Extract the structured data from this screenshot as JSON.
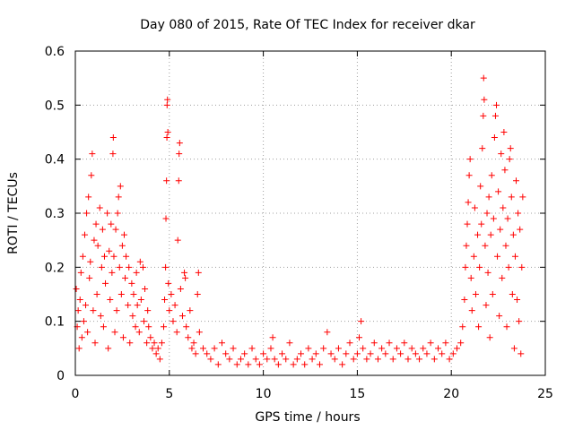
{
  "chart_data": {
    "type": "scatter",
    "title": "Day 080 of 2015, Rate Of TEC Index for receiver dkar",
    "xlabel": "GPS time / hours",
    "ylabel": "ROTI / TECUs",
    "xlim": [
      0,
      25
    ],
    "ylim": [
      0,
      0.6
    ],
    "x_ticks": [
      0,
      5,
      10,
      15,
      20,
      25
    ],
    "y_ticks": [
      0,
      0.1,
      0.2,
      0.3,
      0.4,
      0.5,
      0.6
    ],
    "x_tick_labels": [
      "0",
      "5",
      "10",
      "15",
      "20",
      "25"
    ],
    "y_tick_labels": [
      "0",
      "0.1",
      "0.2",
      "0.3",
      "0.4",
      "0.5",
      "0.6"
    ],
    "grid": true,
    "marker": "+",
    "series": [
      {
        "name": "ROTI",
        "color": "#ff0000",
        "points": [
          [
            0.05,
            0.16
          ],
          [
            0.1,
            0.09
          ],
          [
            0.15,
            0.12
          ],
          [
            0.2,
            0.05
          ],
          [
            0.25,
            0.14
          ],
          [
            0.3,
            0.19
          ],
          [
            0.35,
            0.07
          ],
          [
            0.4,
            0.22
          ],
          [
            0.45,
            0.1
          ],
          [
            0.5,
            0.26
          ],
          [
            0.55,
            0.13
          ],
          [
            0.6,
            0.3
          ],
          [
            0.65,
            0.08
          ],
          [
            0.7,
            0.33
          ],
          [
            0.75,
            0.18
          ],
          [
            0.8,
            0.21
          ],
          [
            0.85,
            0.37
          ],
          [
            0.9,
            0.41
          ],
          [
            0.95,
            0.12
          ],
          [
            1.0,
            0.25
          ],
          [
            1.05,
            0.06
          ],
          [
            1.1,
            0.28
          ],
          [
            1.15,
            0.15
          ],
          [
            1.2,
            0.24
          ],
          [
            1.3,
            0.31
          ],
          [
            1.35,
            0.11
          ],
          [
            1.4,
            0.2
          ],
          [
            1.45,
            0.27
          ],
          [
            1.5,
            0.09
          ],
          [
            1.55,
            0.22
          ],
          [
            1.6,
            0.17
          ],
          [
            1.7,
            0.3
          ],
          [
            1.75,
            0.05
          ],
          [
            1.8,
            0.23
          ],
          [
            1.85,
            0.14
          ],
          [
            1.9,
            0.28
          ],
          [
            1.95,
            0.19
          ],
          [
            2.0,
            0.41
          ],
          [
            2.02,
            0.44
          ],
          [
            2.05,
            0.22
          ],
          [
            2.1,
            0.08
          ],
          [
            2.15,
            0.27
          ],
          [
            2.2,
            0.12
          ],
          [
            2.25,
            0.3
          ],
          [
            2.3,
            0.33
          ],
          [
            2.35,
            0.2
          ],
          [
            2.4,
            0.35
          ],
          [
            2.45,
            0.15
          ],
          [
            2.5,
            0.24
          ],
          [
            2.55,
            0.07
          ],
          [
            2.6,
            0.26
          ],
          [
            2.65,
            0.18
          ],
          [
            2.7,
            0.22
          ],
          [
            2.8,
            0.13
          ],
          [
            2.85,
            0.2
          ],
          [
            2.9,
            0.06
          ],
          [
            3.0,
            0.17
          ],
          [
            3.05,
            0.11
          ],
          [
            3.1,
            0.15
          ],
          [
            3.2,
            0.09
          ],
          [
            3.25,
            0.19
          ],
          [
            3.3,
            0.13
          ],
          [
            3.4,
            0.08
          ],
          [
            3.45,
            0.21
          ],
          [
            3.5,
            0.14
          ],
          [
            3.6,
            0.2
          ],
          [
            3.65,
            0.1
          ],
          [
            3.7,
            0.16
          ],
          [
            3.8,
            0.06
          ],
          [
            3.85,
            0.12
          ],
          [
            3.9,
            0.09
          ],
          [
            4.0,
            0.07
          ],
          [
            4.1,
            0.05
          ],
          [
            4.2,
            0.06
          ],
          [
            4.3,
            0.04
          ],
          [
            4.4,
            0.05
          ],
          [
            4.5,
            0.03
          ],
          [
            4.6,
            0.06
          ],
          [
            4.7,
            0.09
          ],
          [
            4.75,
            0.14
          ],
          [
            4.8,
            0.2
          ],
          [
            4.82,
            0.29
          ],
          [
            4.85,
            0.36
          ],
          [
            4.87,
            0.44
          ],
          [
            4.88,
            0.5
          ],
          [
            4.9,
            0.51
          ],
          [
            4.92,
            0.45
          ],
          [
            4.95,
            0.17
          ],
          [
            5.0,
            0.12
          ],
          [
            5.1,
            0.15
          ],
          [
            5.2,
            0.1
          ],
          [
            5.3,
            0.13
          ],
          [
            5.4,
            0.08
          ],
          [
            5.45,
            0.25
          ],
          [
            5.5,
            0.36
          ],
          [
            5.52,
            0.41
          ],
          [
            5.55,
            0.43
          ],
          [
            5.6,
            0.16
          ],
          [
            5.7,
            0.11
          ],
          [
            5.8,
            0.19
          ],
          [
            5.85,
            0.18
          ],
          [
            5.9,
            0.09
          ],
          [
            6.0,
            0.07
          ],
          [
            6.1,
            0.12
          ],
          [
            6.2,
            0.05
          ],
          [
            6.3,
            0.06
          ],
          [
            6.4,
            0.04
          ],
          [
            6.5,
            0.15
          ],
          [
            6.55,
            0.19
          ],
          [
            6.6,
            0.08
          ],
          [
            6.8,
            0.05
          ],
          [
            7.0,
            0.04
          ],
          [
            7.2,
            0.03
          ],
          [
            7.4,
            0.05
          ],
          [
            7.6,
            0.02
          ],
          [
            7.8,
            0.06
          ],
          [
            8.0,
            0.04
          ],
          [
            8.2,
            0.03
          ],
          [
            8.4,
            0.05
          ],
          [
            8.6,
            0.02
          ],
          [
            8.8,
            0.03
          ],
          [
            9.0,
            0.04
          ],
          [
            9.2,
            0.02
          ],
          [
            9.4,
            0.05
          ],
          [
            9.6,
            0.03
          ],
          [
            9.8,
            0.02
          ],
          [
            10.0,
            0.04
          ],
          [
            10.2,
            0.03
          ],
          [
            10.4,
            0.05
          ],
          [
            10.5,
            0.07
          ],
          [
            10.6,
            0.03
          ],
          [
            10.8,
            0.02
          ],
          [
            11.0,
            0.04
          ],
          [
            11.2,
            0.03
          ],
          [
            11.4,
            0.06
          ],
          [
            11.6,
            0.02
          ],
          [
            11.8,
            0.03
          ],
          [
            12.0,
            0.04
          ],
          [
            12.2,
            0.02
          ],
          [
            12.4,
            0.05
          ],
          [
            12.6,
            0.03
          ],
          [
            12.8,
            0.04
          ],
          [
            13.0,
            0.02
          ],
          [
            13.2,
            0.05
          ],
          [
            13.4,
            0.08
          ],
          [
            13.6,
            0.04
          ],
          [
            13.8,
            0.03
          ],
          [
            14.0,
            0.05
          ],
          [
            14.2,
            0.02
          ],
          [
            14.4,
            0.04
          ],
          [
            14.6,
            0.06
          ],
          [
            14.8,
            0.03
          ],
          [
            15.0,
            0.04
          ],
          [
            15.1,
            0.07
          ],
          [
            15.2,
            0.1
          ],
          [
            15.3,
            0.05
          ],
          [
            15.5,
            0.03
          ],
          [
            15.7,
            0.04
          ],
          [
            15.9,
            0.06
          ],
          [
            16.1,
            0.03
          ],
          [
            16.3,
            0.05
          ],
          [
            16.5,
            0.04
          ],
          [
            16.7,
            0.06
          ],
          [
            16.9,
            0.03
          ],
          [
            17.1,
            0.05
          ],
          [
            17.3,
            0.04
          ],
          [
            17.5,
            0.06
          ],
          [
            17.7,
            0.03
          ],
          [
            17.9,
            0.05
          ],
          [
            18.1,
            0.04
          ],
          [
            18.3,
            0.03
          ],
          [
            18.5,
            0.05
          ],
          [
            18.7,
            0.04
          ],
          [
            18.9,
            0.06
          ],
          [
            19.1,
            0.03
          ],
          [
            19.3,
            0.05
          ],
          [
            19.5,
            0.04
          ],
          [
            19.7,
            0.06
          ],
          [
            19.9,
            0.03
          ],
          [
            20.1,
            0.04
          ],
          [
            20.3,
            0.05
          ],
          [
            20.5,
            0.06
          ],
          [
            20.6,
            0.09
          ],
          [
            20.7,
            0.14
          ],
          [
            20.75,
            0.2
          ],
          [
            20.8,
            0.24
          ],
          [
            20.85,
            0.28
          ],
          [
            20.9,
            0.32
          ],
          [
            20.95,
            0.37
          ],
          [
            21.0,
            0.4
          ],
          [
            21.05,
            0.18
          ],
          [
            21.1,
            0.12
          ],
          [
            21.2,
            0.22
          ],
          [
            21.25,
            0.31
          ],
          [
            21.3,
            0.15
          ],
          [
            21.4,
            0.26
          ],
          [
            21.45,
            0.09
          ],
          [
            21.5,
            0.2
          ],
          [
            21.55,
            0.35
          ],
          [
            21.6,
            0.28
          ],
          [
            21.65,
            0.42
          ],
          [
            21.7,
            0.48
          ],
          [
            21.72,
            0.55
          ],
          [
            21.75,
            0.51
          ],
          [
            21.8,
            0.24
          ],
          [
            21.85,
            0.13
          ],
          [
            21.9,
            0.3
          ],
          [
            21.95,
            0.19
          ],
          [
            22.0,
            0.33
          ],
          [
            22.05,
            0.07
          ],
          [
            22.1,
            0.26
          ],
          [
            22.15,
            0.37
          ],
          [
            22.2,
            0.15
          ],
          [
            22.25,
            0.29
          ],
          [
            22.3,
            0.44
          ],
          [
            22.35,
            0.48
          ],
          [
            22.4,
            0.5
          ],
          [
            22.45,
            0.22
          ],
          [
            22.5,
            0.34
          ],
          [
            22.55,
            0.11
          ],
          [
            22.6,
            0.27
          ],
          [
            22.65,
            0.41
          ],
          [
            22.7,
            0.18
          ],
          [
            22.75,
            0.31
          ],
          [
            22.8,
            0.45
          ],
          [
            22.85,
            0.38
          ],
          [
            22.9,
            0.24
          ],
          [
            22.95,
            0.09
          ],
          [
            23.0,
            0.29
          ],
          [
            23.05,
            0.2
          ],
          [
            23.1,
            0.4
          ],
          [
            23.15,
            0.42
          ],
          [
            23.2,
            0.33
          ],
          [
            23.25,
            0.15
          ],
          [
            23.3,
            0.26
          ],
          [
            23.35,
            0.05
          ],
          [
            23.4,
            0.22
          ],
          [
            23.45,
            0.36
          ],
          [
            23.5,
            0.14
          ],
          [
            23.55,
            0.3
          ],
          [
            23.6,
            0.1
          ],
          [
            23.65,
            0.27
          ],
          [
            23.7,
            0.04
          ],
          [
            23.75,
            0.2
          ],
          [
            23.8,
            0.33
          ]
        ]
      }
    ]
  }
}
